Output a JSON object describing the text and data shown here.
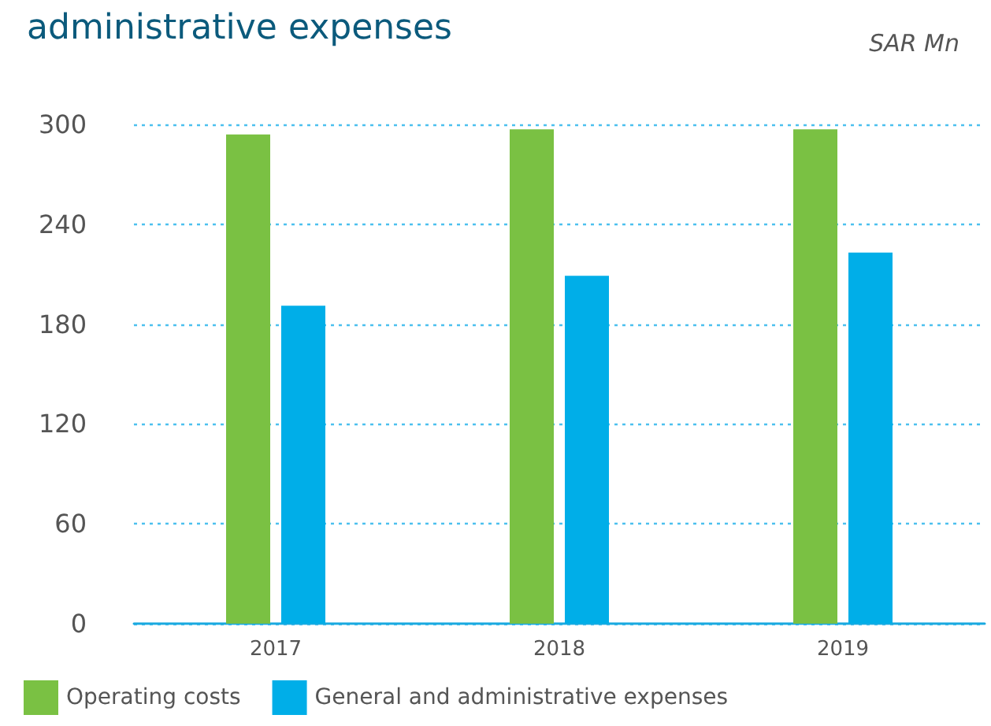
{
  "chart_data": {
    "type": "bar",
    "title": "administrative expenses",
    "annotations": [
      "SAR Mn"
    ],
    "categories": [
      "2017",
      "2018",
      "2019"
    ],
    "series": [
      {
        "name": "Operating costs",
        "color": "#7ac143",
        "values": [
          294,
          297,
          297
        ]
      },
      {
        "name": "General and administrative expenses",
        "color": "#00aee8",
        "values": [
          191,
          209,
          223
        ]
      }
    ],
    "ylim": [
      0,
      300
    ],
    "yticks": [
      0,
      60,
      120,
      180,
      240,
      300
    ],
    "grid": "y",
    "legend": "bottom left"
  }
}
